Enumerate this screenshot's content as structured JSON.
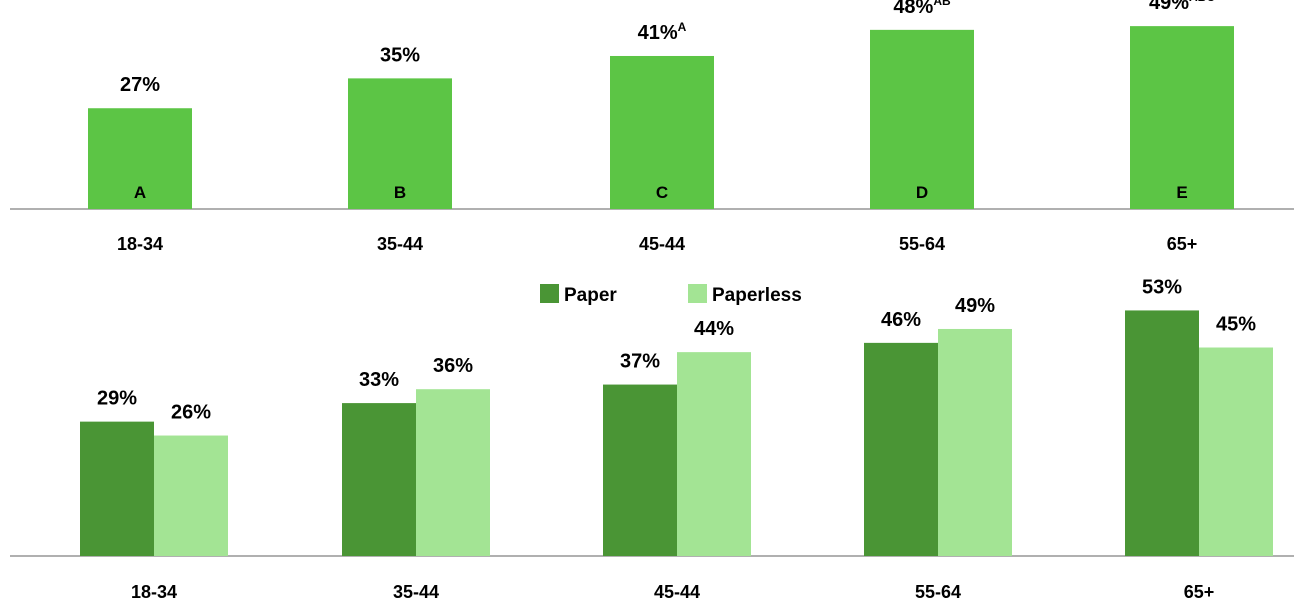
{
  "chart_data": [
    {
      "type": "bar",
      "categories": [
        "18-34",
        "35-44",
        "45-44",
        "55-64",
        "65+"
      ],
      "values": [
        27,
        35,
        41,
        48,
        49
      ],
      "value_labels": [
        "27%",
        "35%",
        "41%",
        "48%",
        "49%"
      ],
      "bar_letters": [
        "A",
        "B",
        "C",
        "D",
        "E"
      ],
      "significance": [
        "",
        "",
        "A",
        "AB",
        "ABC"
      ],
      "colors": {
        "bar": "#5CC545",
        "axis": "#808080"
      },
      "ylim": [
        0,
        56
      ]
    },
    {
      "type": "bar",
      "categories": [
        "18-34",
        "35-44",
        "45-44",
        "55-64",
        "65+"
      ],
      "series": [
        {
          "name": "Paper",
          "values": [
            29,
            33,
            37,
            46,
            53
          ],
          "labels": [
            "29%",
            "33%",
            "37%",
            "46%",
            "53%"
          ],
          "color": "#4A9535"
        },
        {
          "name": "Paperless",
          "values": [
            26,
            36,
            44,
            49,
            45
          ],
          "labels": [
            "26%",
            "36%",
            "44%",
            "49%",
            "45%"
          ],
          "color": "#A3E494"
        }
      ],
      "legend": "top-center",
      "colors": {
        "axis": "#808080"
      },
      "ylim": [
        0,
        60
      ]
    }
  ]
}
